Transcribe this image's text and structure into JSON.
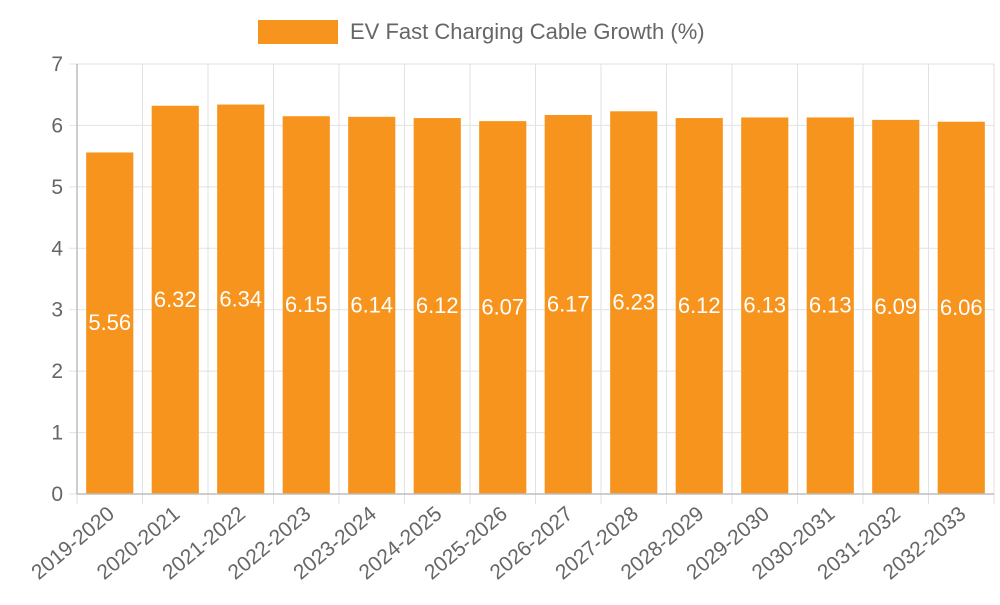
{
  "chart_data": {
    "type": "bar",
    "title": "",
    "xlabel": "",
    "ylabel": "",
    "legend": {
      "position": "top",
      "label": "EV Fast Charging Cable Growth (%)"
    },
    "grid": true,
    "ylim": [
      0,
      7
    ],
    "yticks": [
      "0",
      "1",
      "2",
      "3",
      "4",
      "5",
      "6",
      "7"
    ],
    "categories": [
      "2019-2020",
      "2020-2021",
      "2021-2022",
      "2022-2023",
      "2023-2024",
      "2024-2025",
      "2025-2026",
      "2026-2027",
      "2027-2028",
      "2028-2029",
      "2029-2030",
      "2030-2031",
      "2031-2032",
      "2032-2033"
    ],
    "series": [
      {
        "name": "EV Fast Charging Cable Growth (%)",
        "color": "#f7941d",
        "values": [
          5.56,
          6.32,
          6.34,
          6.15,
          6.14,
          6.12,
          6.07,
          6.17,
          6.23,
          6.12,
          6.13,
          6.13,
          6.09,
          6.06
        ],
        "labels": [
          "5.56",
          "6.32",
          "6.34",
          "6.15",
          "6.14",
          "6.12",
          "6.07",
          "6.17",
          "6.23",
          "6.12",
          "6.13",
          "6.13",
          "6.09",
          "6.06"
        ]
      }
    ]
  }
}
